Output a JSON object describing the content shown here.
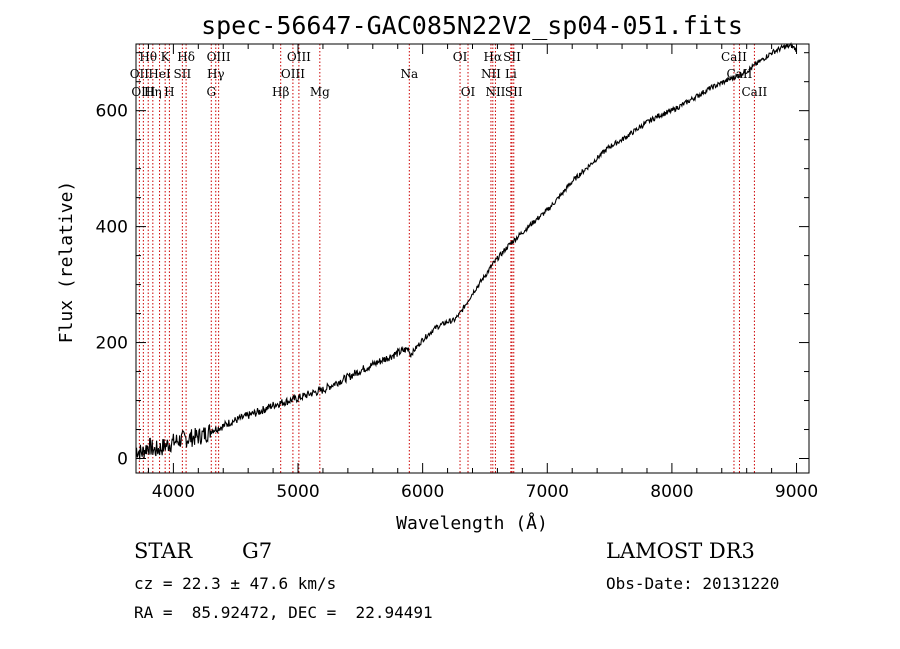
{
  "chart_data": {
    "type": "line",
    "title": "spec-56647-GAC085N22V2_sp04-051.fits",
    "xlabel": "Wavelength (Å)",
    "ylabel": "Flux (relative)",
    "xlim": [
      3700,
      9100
    ],
    "ylim": [
      -25,
      715
    ],
    "xticks": [
      4000,
      5000,
      6000,
      7000,
      8000,
      9000
    ],
    "yticks": [
      0,
      200,
      400,
      600
    ],
    "series": [
      {
        "name": "spectrum",
        "x": [
          3700,
          3750,
          3800,
          3850,
          3900,
          3950,
          4000,
          4050,
          4100,
          4150,
          4200,
          4250,
          4300,
          4350,
          4400,
          4450,
          4500,
          4600,
          4700,
          4800,
          4861,
          4900,
          5000,
          5100,
          5200,
          5300,
          5400,
          5500,
          5600,
          5700,
          5800,
          5890,
          5900,
          6000,
          6100,
          6200,
          6250,
          6300,
          6400,
          6500,
          6563,
          6600,
          6700,
          6800,
          6900,
          7000,
          7100,
          7200,
          7300,
          7400,
          7500,
          7600,
          7700,
          7800,
          7900,
          8000,
          8100,
          8200,
          8300,
          8400,
          8500,
          8600,
          8700,
          8800,
          8900,
          8960,
          9000
        ],
        "y": [
          15,
          10,
          22,
          14,
          18,
          24,
          28,
          32,
          34,
          36,
          38,
          42,
          48,
          52,
          56,
          62,
          66,
          74,
          82,
          92,
          96,
          98,
          104,
          112,
          118,
          130,
          140,
          152,
          162,
          172,
          182,
          190,
          178,
          205,
          225,
          236,
          238,
          250,
          285,
          315,
          335,
          345,
          370,
          390,
          410,
          428,
          452,
          478,
          498,
          518,
          538,
          550,
          565,
          580,
          592,
          600,
          612,
          625,
          638,
          648,
          658,
          668,
          684,
          700,
          710,
          712,
          705
        ]
      }
    ],
    "spectral_lines": [
      {
        "label": "Hθ",
        "x": 3798,
        "row": 1
      },
      {
        "label": "K",
        "x": 3934,
        "row": 1
      },
      {
        "label": "Hδ",
        "x": 4102,
        "row": 1
      },
      {
        "label": "OIII",
        "x": 4363,
        "row": 1
      },
      {
        "label": "OIII",
        "x": 5007,
        "row": 1
      },
      {
        "label": "OI",
        "x": 6300,
        "row": 1
      },
      {
        "label": "Hα",
        "x": 6563,
        "row": 1
      },
      {
        "label": "SII",
        "x": 6717,
        "row": 1
      },
      {
        "label": "CaII",
        "x": 8498,
        "row": 1
      },
      {
        "label": "OII",
        "x": 3727,
        "row": 2
      },
      {
        "label": "HeI",
        "x": 3889,
        "row": 2
      },
      {
        "label": "SII",
        "x": 4072,
        "row": 2
      },
      {
        "label": "Hγ",
        "x": 4340,
        "row": 2
      },
      {
        "label": "OIII",
        "x": 4959,
        "row": 2
      },
      {
        "label": "Na",
        "x": 5893,
        "row": 2
      },
      {
        "label": "NII",
        "x": 6548,
        "row": 2
      },
      {
        "label": "Li",
        "x": 6708,
        "row": 2
      },
      {
        "label": "CaII",
        "x": 8542,
        "row": 2
      },
      {
        "label": "OIII",
        "x": 3759,
        "row": 3
      },
      {
        "label": "Hη",
        "x": 3835,
        "row": 3
      },
      {
        "label": "H",
        "x": 3968,
        "row": 3
      },
      {
        "label": "G",
        "x": 4304,
        "row": 3
      },
      {
        "label": "Hβ",
        "x": 4861,
        "row": 3
      },
      {
        "label": "Mg",
        "x": 5175,
        "row": 3
      },
      {
        "label": "OI",
        "x": 6364,
        "row": 3
      },
      {
        "label": "NII",
        "x": 6584,
        "row": 3
      },
      {
        "label": "SII",
        "x": 6731,
        "row": 3
      },
      {
        "label": "CaII",
        "x": 8662,
        "row": 3
      }
    ]
  },
  "info": {
    "object_class": "STAR",
    "subclass": "G7",
    "survey": "LAMOST DR3",
    "redshift": "cz = 22.3 ± 47.6 km/s",
    "obs_date": "Obs-Date: 20131220",
    "coords": "RA =  85.92472, DEC =  22.94491"
  },
  "colors": {
    "line_marker": "#cc0000",
    "spectrum": "#000000"
  }
}
